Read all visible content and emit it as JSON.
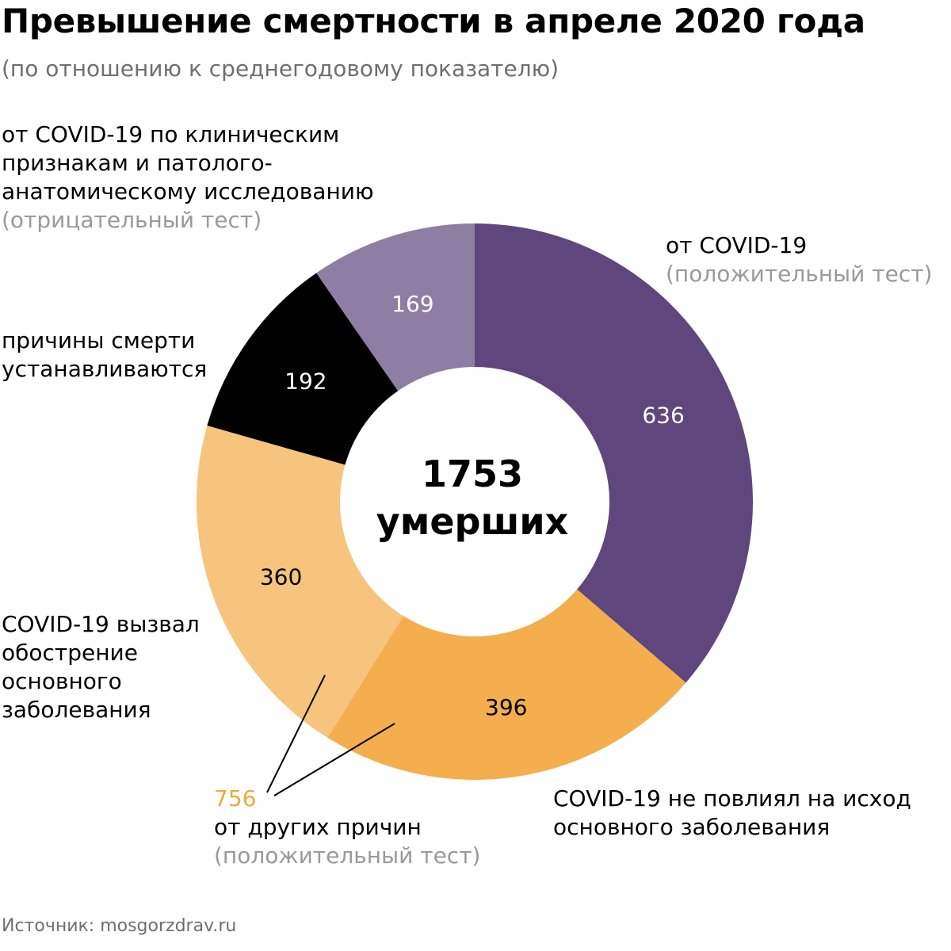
{
  "title": "Превышение смертности в апреле 2020 года",
  "subtitle": "(по отношению к среднегодовому показателю)",
  "center": {
    "number": "1753",
    "unit": "умерших"
  },
  "labels": {
    "covid_positive": {
      "line1": "от COVID-19",
      "line2": "(положительный тест)"
    },
    "clinical": {
      "line1": "от COVID-19 по клиническим",
      "line2": "признакам и патолого-",
      "line3": "анатомическому исследованию",
      "line4": "(отрицательный тест)"
    },
    "undetermined": {
      "line1": "причины смерти",
      "line2": "устанавливаются"
    },
    "exacerbation": {
      "line1": "COVID-19 вызвал",
      "line2": "обострение",
      "line3": "основного",
      "line4": "заболевания"
    },
    "no_effect": {
      "line1": "COVID-19 не повлиял на исход",
      "line2": "основного заболевания"
    },
    "other_causes": {
      "value": "756",
      "line1": "от других причин",
      "line2": "(положительный тест)"
    }
  },
  "source": "Источник: mosgorzdrav.ru",
  "chart_data": {
    "type": "pie",
    "donut": true,
    "total": 1753,
    "start": "12 o'clock",
    "direction": "clockwise",
    "slices": [
      {
        "label": "от COVID-19 (положительный тест)",
        "value": 636,
        "color": "#5f477d",
        "text_color": "#ffffff"
      },
      {
        "label": "COVID-19 не повлиял на исход основного заболевания",
        "value": 396,
        "color": "#f4ae4e",
        "text_color": "#000000"
      },
      {
        "label": "COVID-19 вызвал обострение основного заболевания",
        "value": 360,
        "color": "#f6c47c",
        "text_color": "#000000"
      },
      {
        "label": "причины смерти устанавливаются",
        "value": 192,
        "color": "#000000",
        "text_color": "#ffffff"
      },
      {
        "label": "от COVID-19 по клиническим признакам и патолого-анатомическому исследованию (отрицательный тест)",
        "value": 169,
        "color": "#8e7ea3",
        "text_color": "#ffffff"
      }
    ],
    "group": {
      "label": "от других причин (положительный тест)",
      "value": 756,
      "members": [
        1,
        2
      ],
      "color": "#f0a93a"
    }
  }
}
